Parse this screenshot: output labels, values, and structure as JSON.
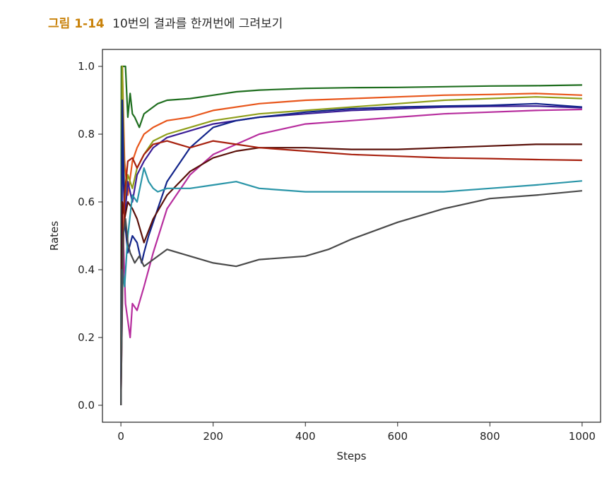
{
  "caption": {
    "figure_number": "그림 1-14",
    "text": "10번의 결과를 한꺼번에 그려보기"
  },
  "chart_data": {
    "type": "line",
    "title": "",
    "xlabel": "Steps",
    "ylabel": "Rates",
    "xlim": [
      -40,
      1040
    ],
    "ylim": [
      -0.05,
      1.05
    ],
    "xticks": [
      0,
      200,
      400,
      600,
      800,
      1000
    ],
    "xtick_labels": [
      "0",
      "200",
      "400",
      "600",
      "800",
      "1000"
    ],
    "yticks": [
      0.0,
      0.2,
      0.4,
      0.6,
      0.8,
      1.0
    ],
    "ytick_labels": [
      "0.0",
      "0.2",
      "0.4",
      "0.6",
      "0.8",
      "1.0"
    ],
    "grid": false,
    "legend": "none",
    "series": [
      {
        "color": "#1f6e1f",
        "x": [
          0,
          1,
          3,
          10,
          15,
          20,
          25,
          30,
          40,
          50,
          60,
          80,
          100,
          150,
          200,
          250,
          300,
          400,
          500,
          600,
          700,
          800,
          900,
          1000
        ],
        "y": [
          0.0,
          1.0,
          1.0,
          1.0,
          0.85,
          0.92,
          0.86,
          0.85,
          0.82,
          0.86,
          0.87,
          0.89,
          0.9,
          0.905,
          0.915,
          0.925,
          0.93,
          0.935,
          0.937,
          0.938,
          0.94,
          0.942,
          0.943,
          0.945
        ]
      },
      {
        "color": "#e8561b",
        "x": [
          0,
          3,
          8,
          15,
          25,
          35,
          50,
          70,
          100,
          150,
          200,
          300,
          400,
          500,
          600,
          700,
          800,
          900,
          1000
        ],
        "y": [
          0.0,
          1.0,
          0.72,
          0.62,
          0.72,
          0.76,
          0.8,
          0.82,
          0.84,
          0.85,
          0.87,
          0.89,
          0.9,
          0.905,
          0.91,
          0.915,
          0.917,
          0.92,
          0.915
        ]
      },
      {
        "color": "#8f9f1b",
        "x": [
          0,
          3,
          8,
          15,
          25,
          35,
          50,
          70,
          100,
          150,
          200,
          300,
          400,
          500,
          600,
          700,
          800,
          900,
          1000
        ],
        "y": [
          0.0,
          1.0,
          0.6,
          0.68,
          0.64,
          0.7,
          0.74,
          0.78,
          0.8,
          0.82,
          0.84,
          0.86,
          0.87,
          0.88,
          0.89,
          0.9,
          0.905,
          0.91,
          0.905
        ]
      },
      {
        "color": "#3b1e96",
        "x": [
          0,
          3,
          8,
          15,
          25,
          35,
          50,
          70,
          100,
          150,
          200,
          300,
          400,
          500,
          600,
          700,
          800,
          900,
          1000
        ],
        "y": [
          0.0,
          0.8,
          0.55,
          0.66,
          0.6,
          0.68,
          0.72,
          0.76,
          0.79,
          0.81,
          0.83,
          0.85,
          0.86,
          0.87,
          0.875,
          0.88,
          0.882,
          0.883,
          0.878
        ]
      },
      {
        "color": "#b72e9e",
        "x": [
          0,
          5,
          10,
          15,
          20,
          25,
          35,
          50,
          70,
          100,
          150,
          200,
          300,
          400,
          500,
          600,
          700,
          800,
          900,
          1000
        ],
        "y": [
          0.0,
          0.5,
          0.3,
          0.25,
          0.2,
          0.3,
          0.28,
          0.35,
          0.45,
          0.58,
          0.68,
          0.74,
          0.8,
          0.83,
          0.84,
          0.85,
          0.86,
          0.865,
          0.87,
          0.873
        ]
      },
      {
        "color": "#12248a",
        "x": [
          0,
          3,
          8,
          15,
          25,
          35,
          45,
          50,
          60,
          80,
          100,
          150,
          200,
          250,
          300,
          400,
          500,
          600,
          700,
          800,
          900,
          1000
        ],
        "y": [
          0.0,
          0.9,
          0.55,
          0.45,
          0.5,
          0.48,
          0.42,
          0.45,
          0.5,
          0.58,
          0.66,
          0.76,
          0.82,
          0.84,
          0.85,
          0.865,
          0.875,
          0.88,
          0.883,
          0.885,
          0.89,
          0.88
        ]
      },
      {
        "color": "#5a1009",
        "x": [
          0,
          3,
          8,
          15,
          25,
          35,
          50,
          70,
          100,
          150,
          200,
          250,
          300,
          400,
          500,
          600,
          700,
          800,
          900,
          1000
        ],
        "y": [
          0.0,
          0.6,
          0.55,
          0.6,
          0.58,
          0.55,
          0.48,
          0.55,
          0.62,
          0.69,
          0.73,
          0.75,
          0.76,
          0.76,
          0.755,
          0.755,
          0.76,
          0.765,
          0.77,
          0.77
        ]
      },
      {
        "color": "#a7210f",
        "x": [
          0,
          3,
          8,
          15,
          25,
          35,
          50,
          70,
          100,
          150,
          200,
          250,
          300,
          400,
          500,
          600,
          700,
          800,
          900,
          1000
        ],
        "y": [
          0.0,
          0.35,
          0.62,
          0.72,
          0.73,
          0.7,
          0.74,
          0.77,
          0.78,
          0.76,
          0.78,
          0.77,
          0.76,
          0.75,
          0.74,
          0.735,
          0.73,
          0.728,
          0.725,
          0.723
        ]
      },
      {
        "color": "#2a95a8",
        "x": [
          0,
          3,
          8,
          15,
          25,
          35,
          50,
          60,
          70,
          80,
          100,
          150,
          200,
          250,
          300,
          400,
          500,
          600,
          700,
          800,
          900,
          1000
        ],
        "y": [
          0.0,
          0.4,
          0.35,
          0.5,
          0.62,
          0.6,
          0.7,
          0.66,
          0.64,
          0.63,
          0.64,
          0.64,
          0.65,
          0.66,
          0.64,
          0.63,
          0.63,
          0.63,
          0.63,
          0.64,
          0.65,
          0.662
        ]
      },
      {
        "color": "#4a4a4a",
        "x": [
          0,
          5,
          10,
          15,
          20,
          30,
          40,
          50,
          70,
          100,
          150,
          200,
          250,
          300,
          400,
          450,
          500,
          600,
          700,
          800,
          900,
          1000
        ],
        "y": [
          0.0,
          0.5,
          0.55,
          0.48,
          0.45,
          0.42,
          0.44,
          0.41,
          0.43,
          0.46,
          0.44,
          0.42,
          0.41,
          0.43,
          0.44,
          0.46,
          0.49,
          0.54,
          0.58,
          0.61,
          0.62,
          0.633
        ]
      }
    ]
  }
}
